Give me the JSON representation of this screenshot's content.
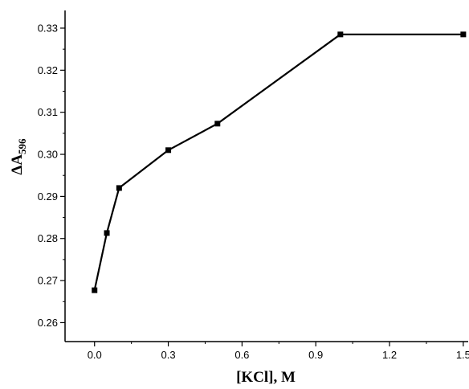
{
  "chart_data": {
    "type": "line",
    "title": "",
    "xlabel": "[KCl], M",
    "ylabel_main": "ΔA",
    "ylabel_subscript": "596",
    "xlim": [
      -0.12,
      1.52
    ],
    "ylim": [
      0.2555,
      0.3342
    ],
    "x_ticks": [
      0.0,
      0.3,
      0.6,
      0.9,
      1.2,
      1.5
    ],
    "x_tick_labels": [
      "0.0",
      "0.3",
      "0.6",
      "0.9",
      "1.2",
      "1.5"
    ],
    "y_ticks": [
      0.26,
      0.27,
      0.28,
      0.29,
      0.3,
      0.31,
      0.32,
      0.33
    ],
    "y_tick_labels": [
      "0.26",
      "0.27",
      "0.28",
      "0.29",
      "0.30",
      "0.31",
      "0.32",
      "0.33"
    ],
    "grid": false,
    "legend": "none",
    "marker": "square",
    "line_color": "#000000",
    "series": [
      {
        "x": [
          0.0,
          0.05,
          0.1,
          0.3,
          0.5,
          1.0,
          1.5
        ],
        "y": [
          0.2677,
          0.2813,
          0.292,
          0.301,
          0.3073,
          0.3285,
          0.3285
        ]
      }
    ]
  }
}
